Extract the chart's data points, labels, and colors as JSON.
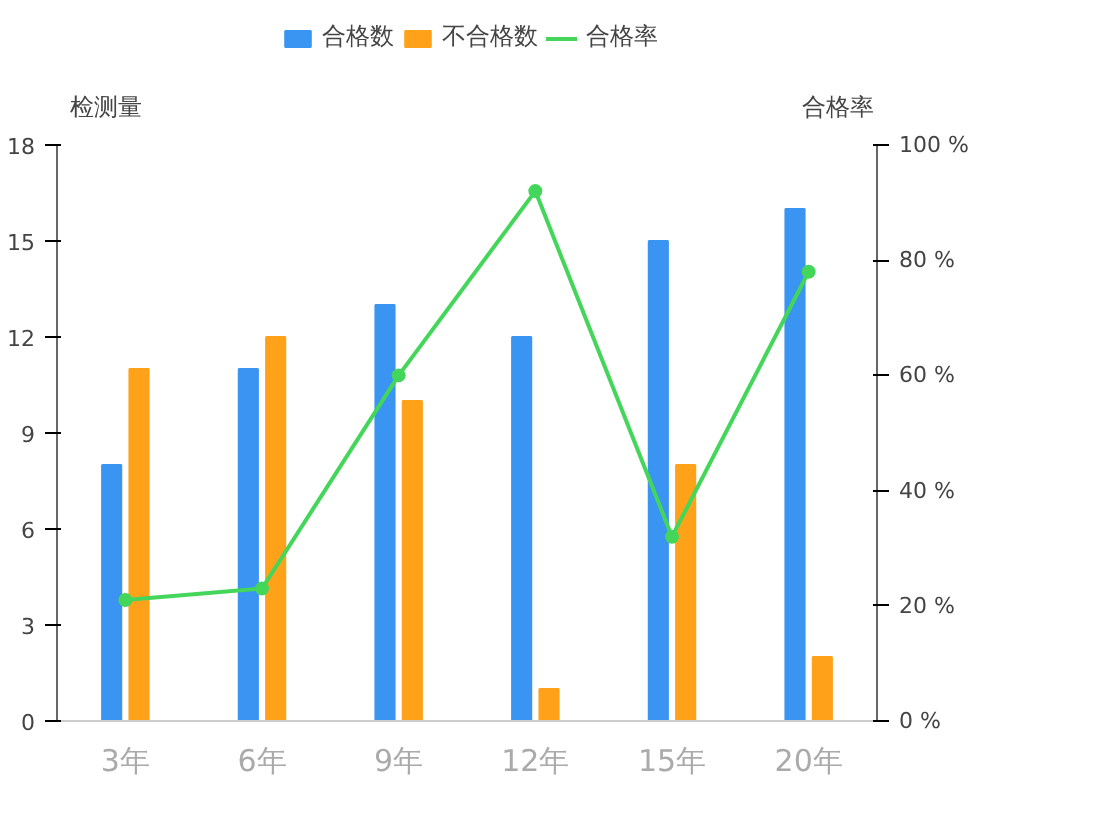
{
  "chart_data": {
    "type": "bar",
    "categories": [
      "3年",
      "6年",
      "9年",
      "12年",
      "15年",
      "20年"
    ],
    "ylabel": "检测量",
    "y2label": "合格率",
    "ylim": [
      0,
      18
    ],
    "yticks": [
      0,
      3,
      6,
      9,
      12,
      15,
      18
    ],
    "y2lim": [
      0,
      100
    ],
    "y2ticks": [
      {
        "value": 0,
        "label": "0 %"
      },
      {
        "value": 20,
        "label": "20 %"
      },
      {
        "value": 40,
        "label": "40 %"
      },
      {
        "value": 60,
        "label": "60 %"
      },
      {
        "value": 80,
        "label": "80 %"
      },
      {
        "value": 100,
        "label": "100 %"
      }
    ],
    "series": [
      {
        "name": "合格数",
        "color": "#3a94f2",
        "values": [
          8,
          11,
          13,
          12,
          15,
          16
        ]
      },
      {
        "name": "不合格数",
        "color": "#ffa21a",
        "values": [
          11,
          12,
          10,
          1,
          8,
          2
        ]
      },
      {
        "name": "合格率",
        "type": "line",
        "axis": "y2",
        "color": "#44d65a",
        "marker": "circle",
        "values": [
          21,
          23,
          60,
          92,
          32,
          78
        ]
      }
    ],
    "grid": false,
    "legend": "top"
  }
}
